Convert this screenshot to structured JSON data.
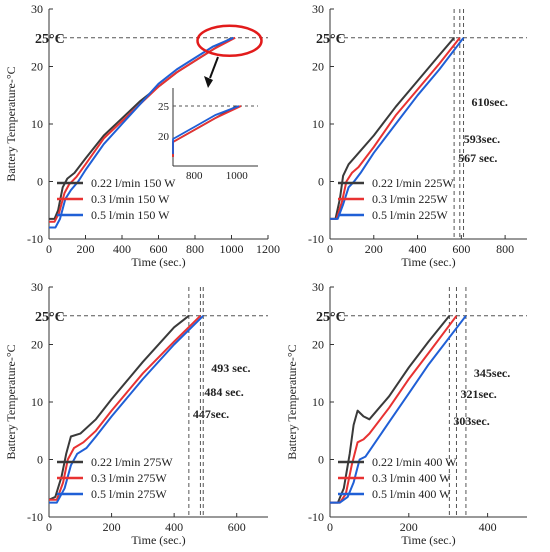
{
  "colors": {
    "series": [
      "#3a3a3a",
      "#e83232",
      "#1f5fd6"
    ],
    "ref_line": "#555555",
    "callout": "#e21b1b"
  },
  "chart_data": [
    {
      "type": "line",
      "ylabel": "Battery Temperature-°C",
      "xlabel": "Time (sec.)",
      "xlim": [
        0,
        1200
      ],
      "ylim": [
        -10,
        30
      ],
      "xticks": [
        0,
        200,
        400,
        600,
        800,
        1000,
        1200
      ],
      "yticks": [
        -10,
        0,
        10,
        20,
        30
      ],
      "ref_label": "25°C",
      "ref_value": 25,
      "legend": "bottom-left",
      "series": [
        {
          "name": "0.22 l/min 150 W",
          "x": [
            0,
            30,
            50,
            75,
            100,
            140,
            200,
            300,
            400,
            500,
            600,
            700,
            800,
            900,
            1000
          ],
          "y": [
            -6.5,
            -6.5,
            -5,
            -1,
            0.5,
            1.5,
            4,
            8,
            11,
            14,
            16.5,
            19,
            21,
            23,
            25
          ]
        },
        {
          "name": "0.3 l/min 150 W",
          "x": [
            0,
            30,
            55,
            85,
            110,
            150,
            200,
            300,
            400,
            500,
            600,
            700,
            800,
            900,
            1020
          ],
          "y": [
            -7,
            -7,
            -5.5,
            -2,
            -0.5,
            0.8,
            3,
            7.5,
            10.5,
            13.5,
            16.5,
            19,
            21,
            23,
            25
          ]
        },
        {
          "name": "0.5 l/min 150 W",
          "x": [
            0,
            35,
            60,
            90,
            120,
            160,
            200,
            300,
            400,
            500,
            600,
            700,
            800,
            900,
            1010
          ],
          "y": [
            -8,
            -8,
            -6.5,
            -3,
            -1.5,
            0,
            2,
            6.5,
            10,
            13.5,
            17,
            19.5,
            21.5,
            23.5,
            25
          ]
        }
      ],
      "inset": {
        "xlim": [
          700,
          1100
        ],
        "ylim": [
          15,
          28
        ],
        "xticks": [
          800,
          1000
        ],
        "yticks": [
          20,
          25
        ]
      }
    },
    {
      "type": "line",
      "ylabel": "",
      "xlabel": "Time (sec.)",
      "xlim": [
        0,
        900
      ],
      "ylim": [
        -10,
        30
      ],
      "xticks": [
        0,
        200,
        400,
        600,
        800
      ],
      "yticks": [
        -10,
        0,
        10,
        20,
        30
      ],
      "ref_label": "25°C",
      "ref_value": 25,
      "legend": "bottom-left",
      "markers": [
        {
          "x": 567,
          "label": "567 sec."
        },
        {
          "x": 593,
          "label": "593sec."
        },
        {
          "x": 610,
          "label": "610sec."
        }
      ],
      "series": [
        {
          "name": "0.22 l/min 225W",
          "x": [
            0,
            25,
            45,
            60,
            85,
            120,
            200,
            300,
            400,
            500,
            567
          ],
          "y": [
            -6.5,
            -6.5,
            -3,
            1,
            3,
            4.5,
            8,
            13,
            17.5,
            22,
            25
          ]
        },
        {
          "name": "0.3 l/min 225W",
          "x": [
            0,
            30,
            55,
            75,
            100,
            130,
            200,
            300,
            400,
            500,
            593
          ],
          "y": [
            -6.5,
            -6.5,
            -3.5,
            0,
            1.5,
            2.5,
            6,
            11.5,
            16,
            20.5,
            25
          ]
        },
        {
          "name": "0.5 l/min 225W",
          "x": [
            0,
            35,
            60,
            85,
            110,
            140,
            200,
            300,
            400,
            500,
            610
          ],
          "y": [
            -6.5,
            -6.5,
            -4,
            -1,
            0,
            1.5,
            5,
            10,
            15,
            19.5,
            25
          ]
        }
      ]
    },
    {
      "type": "line",
      "ylabel": "Battery Temperature-°C",
      "xlabel": "Time (sec.)",
      "xlim": [
        0,
        700
      ],
      "ylim": [
        -10,
        30
      ],
      "xticks": [
        0,
        200,
        400,
        600
      ],
      "yticks": [
        -10,
        0,
        10,
        20,
        30
      ],
      "ref_label": "25°C",
      "ref_value": 25,
      "legend": "bottom-left",
      "markers": [
        {
          "x": 447,
          "label": "447sec."
        },
        {
          "x": 484,
          "label": "484 sec."
        },
        {
          "x": 493,
          "label": "493 sec."
        }
      ],
      "series": [
        {
          "name": "0.22 l/min 275W",
          "x": [
            0,
            20,
            40,
            55,
            70,
            100,
            150,
            200,
            300,
            400,
            447
          ],
          "y": [
            -7,
            -6.5,
            -3,
            1,
            4,
            4.5,
            7,
            10.5,
            17,
            23,
            25
          ]
        },
        {
          "name": "0.3 l/min 275W",
          "x": [
            0,
            25,
            45,
            60,
            80,
            110,
            150,
            200,
            300,
            400,
            484
          ],
          "y": [
            -7,
            -7,
            -4,
            0,
            2,
            3,
            5,
            8.5,
            15,
            20.5,
            25
          ]
        },
        {
          "name": "0.5 l/min 275W",
          "x": [
            0,
            25,
            50,
            70,
            90,
            120,
            150,
            200,
            300,
            400,
            493
          ],
          "y": [
            -7.5,
            -7.5,
            -5,
            -1,
            1,
            2,
            4,
            7.5,
            14,
            20,
            25
          ]
        }
      ]
    },
    {
      "type": "line",
      "ylabel": "Battery Temperature-°C",
      "xlabel": "Time (sec.)",
      "xlim": [
        0,
        500
      ],
      "ylim": [
        -10,
        30
      ],
      "xticks": [
        0,
        200,
        400
      ],
      "yticks": [
        -10,
        0,
        10,
        20,
        30
      ],
      "ref_label": "25°C",
      "ref_value": 25,
      "legend": "bottom-left",
      "markers": [
        {
          "x": 303,
          "label": "303sec."
        },
        {
          "x": 321,
          "label": "321sec."
        },
        {
          "x": 345,
          "label": "345sec."
        }
      ],
      "series": [
        {
          "name": "0.22 l/min 400 W",
          "x": [
            0,
            20,
            35,
            50,
            60,
            70,
            85,
            100,
            150,
            200,
            250,
            303
          ],
          "y": [
            -7.5,
            -7.5,
            -5,
            1,
            6,
            8.5,
            7.5,
            7,
            11,
            16,
            20.5,
            25
          ]
        },
        {
          "name": "0.3 l/min 400 W",
          "x": [
            0,
            25,
            40,
            55,
            70,
            85,
            100,
            150,
            200,
            250,
            321
          ],
          "y": [
            -7.5,
            -7.5,
            -6,
            -1,
            3,
            3.5,
            4.5,
            9,
            14,
            18.5,
            25
          ]
        },
        {
          "name": "0.5 l/min 400 W",
          "x": [
            0,
            25,
            45,
            60,
            75,
            90,
            100,
            150,
            200,
            250,
            345
          ],
          "y": [
            -7.5,
            -7.5,
            -6.5,
            -4,
            0,
            0.5,
            1.5,
            6.5,
            11.5,
            16.5,
            25
          ]
        }
      ]
    }
  ]
}
